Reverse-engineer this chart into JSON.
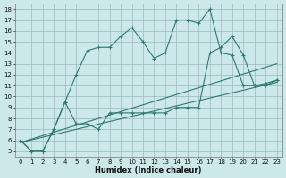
{
  "xlabel": "Humidex (Indice chaleur)",
  "background_color": "#cce8e8",
  "grid_color": "#99bbbb",
  "line_color": "#2d7a6e",
  "x_range_min": -0.5,
  "x_range_max": 23.5,
  "y_range_min": 4.5,
  "y_range_max": 18.5,
  "yticks": [
    5,
    6,
    7,
    8,
    9,
    10,
    11,
    12,
    13,
    14,
    15,
    16,
    17,
    18
  ],
  "xticks": [
    0,
    1,
    2,
    3,
    4,
    5,
    6,
    7,
    8,
    9,
    10,
    11,
    12,
    13,
    14,
    15,
    16,
    17,
    18,
    19,
    20,
    21,
    22,
    23
  ],
  "line1_x": [
    0,
    1,
    2,
    3,
    4,
    5,
    6,
    7,
    8,
    9,
    10,
    11,
    12,
    13,
    14,
    15,
    16,
    17,
    18,
    19,
    20,
    21,
    22,
    23
  ],
  "line1_y": [
    6.0,
    5.0,
    5.0,
    7.0,
    9.5,
    12.0,
    14.2,
    14.5,
    14.5,
    15.5,
    16.3,
    15.0,
    13.5,
    14.0,
    17.0,
    17.0,
    16.7,
    18.0,
    14.0,
    13.8,
    11.0,
    11.0,
    11.2,
    11.5
  ],
  "line2_x": [
    0,
    1,
    2,
    3,
    4,
    5,
    6,
    7,
    8,
    9,
    10,
    11,
    12,
    13,
    14,
    15,
    16,
    17,
    18,
    19,
    20,
    21,
    22,
    23
  ],
  "line2_y": [
    6.0,
    5.0,
    5.0,
    7.0,
    9.5,
    7.5,
    7.5,
    7.0,
    8.5,
    8.5,
    8.5,
    8.5,
    8.5,
    8.5,
    9.0,
    9.0,
    9.0,
    14.0,
    14.5,
    15.5,
    13.8,
    11.0,
    11.0,
    11.5
  ],
  "line3_x": [
    0,
    23
  ],
  "line3_y": [
    5.8,
    13.0
  ],
  "line4_x": [
    0,
    23
  ],
  "line4_y": [
    5.8,
    11.3
  ]
}
